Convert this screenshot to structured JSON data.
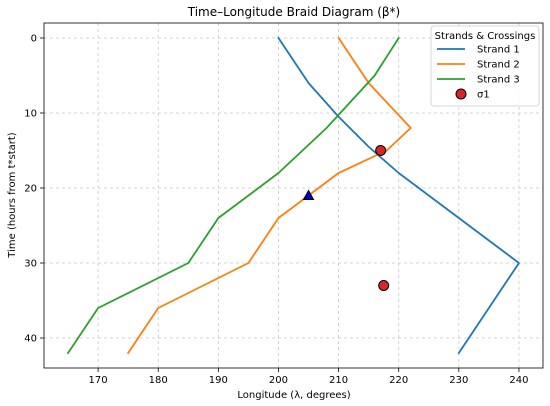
{
  "chart_data": {
    "type": "line",
    "title": "Time–Longitude Braid Diagram (β*)",
    "xlabel": "Longitude (λ, degrees)",
    "ylabel": "Time (hours from t*start)",
    "xlim": [
      161,
      244
    ],
    "ylim": [
      44,
      -2
    ],
    "y_inverted": true,
    "x_ticks": [
      170,
      180,
      190,
      200,
      210,
      220,
      230,
      240
    ],
    "y_ticks": [
      0,
      10,
      20,
      30,
      40
    ],
    "grid": true,
    "legend": {
      "title": "Strands & Crossings",
      "placement": "top-right"
    },
    "series": [
      {
        "name": "Strand 1",
        "color": "#1f77b4",
        "x": [
          200,
          205,
          210,
          215,
          220,
          240,
          230
        ],
        "y": [
          0,
          6,
          10.5,
          14.5,
          18,
          30,
          42
        ]
      },
      {
        "name": "Strand 2",
        "color": "#ff7f0e",
        "x": [
          210,
          215,
          222,
          218,
          210,
          200,
          195,
          180,
          175
        ],
        "y": [
          0,
          6,
          12,
          15,
          18,
          24,
          30,
          36,
          42
        ]
      },
      {
        "name": "Strand 3",
        "color": "#2ca02c",
        "x": [
          220,
          216,
          208,
          200,
          190,
          185,
          170,
          165
        ],
        "y": [
          0,
          5,
          12,
          18,
          24,
          30,
          36,
          42
        ]
      }
    ],
    "markers": [
      {
        "name": "σ1",
        "shape": "circle",
        "color": "#d62728",
        "edge": "#000000",
        "points": [
          {
            "x": 217,
            "y": 15
          },
          {
            "x": 217.5,
            "y": 33
          }
        ]
      },
      {
        "name": "",
        "shape": "triangle",
        "color": "#0000cc",
        "edge": "#000000",
        "points": [
          {
            "x": 205,
            "y": 21
          }
        ]
      }
    ]
  }
}
